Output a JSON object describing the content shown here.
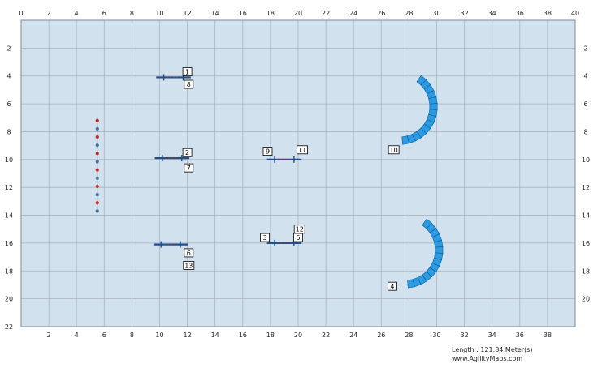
{
  "course_map": {
    "x_range": [
      0,
      40
    ],
    "y_range": [
      0,
      22
    ],
    "x_ticks": [
      "0",
      "2",
      "4",
      "6",
      "8",
      "10",
      "12",
      "14",
      "16",
      "18",
      "20",
      "22",
      "24",
      "26",
      "28",
      "30",
      "32",
      "34",
      "36",
      "38",
      "40"
    ],
    "y_ticks": [
      "0",
      "2",
      "4",
      "6",
      "8",
      "10",
      "12",
      "14",
      "16",
      "18",
      "20",
      "22"
    ],
    "colors": {
      "field": "#d2e1ee",
      "grid": "#a9b4bf",
      "tunnel": "#2b9be3",
      "tunnel_edge": "#0b5e98",
      "bar": "#1f4e8c",
      "pole_red": "#c0282b",
      "pole_blue": "#4a6f99"
    },
    "jumps": [
      {
        "id": "jump-1-8",
        "x": 11,
        "y": 4.1,
        "labels": [
          {
            "text": "1",
            "x": 12,
            "y": 3.7
          },
          {
            "text": "8",
            "x": 12.1,
            "y": 4.6
          }
        ]
      },
      {
        "id": "jump-2-7",
        "x": 10.9,
        "y": 9.9,
        "labels": [
          {
            "text": "2",
            "x": 12,
            "y": 9.5
          },
          {
            "text": "7",
            "x": 12.1,
            "y": 10.6
          }
        ]
      },
      {
        "id": "jump-9-11",
        "x": 19,
        "y": 10,
        "labels": [
          {
            "text": "9",
            "x": 17.8,
            "y": 9.4
          },
          {
            "text": "11",
            "x": 20.3,
            "y": 9.3
          }
        ]
      },
      {
        "id": "jump-6-13",
        "x": 10.8,
        "y": 16.1,
        "labels": [
          {
            "text": "6",
            "x": 12.1,
            "y": 16.7
          },
          {
            "text": "13",
            "x": 12.1,
            "y": 17.6
          }
        ]
      },
      {
        "id": "jump-3-12-5",
        "x": 19,
        "y": 16,
        "labels": [
          {
            "text": "3",
            "x": 17.6,
            "y": 15.6
          },
          {
            "text": "12",
            "x": 20.1,
            "y": 15
          },
          {
            "text": "5",
            "x": 20,
            "y": 15.6
          }
        ]
      }
    ],
    "weave_poles": {
      "x": 5.5,
      "y_start": 7.2,
      "y_end": 13.7,
      "count": 12
    },
    "tunnels": [
      {
        "id": "tunnel-10",
        "label": "10",
        "label_x": 26.9,
        "label_y": 9.3,
        "center_x": 27.3,
        "center_y": 6.2,
        "radius": 2.2,
        "width": 0.55,
        "start_angle": -55,
        "end_angle": 85
      },
      {
        "id": "tunnel-4",
        "label": "4",
        "label_x": 26.8,
        "label_y": 19.1,
        "center_x": 27.7,
        "center_y": 16.5,
        "radius": 2.2,
        "width": 0.55,
        "start_angle": -55,
        "end_angle": 85
      }
    ],
    "footer": {
      "length_text": "Length : 121.84 Meter(s)",
      "site_text": "www.AgilityMaps.com"
    }
  }
}
